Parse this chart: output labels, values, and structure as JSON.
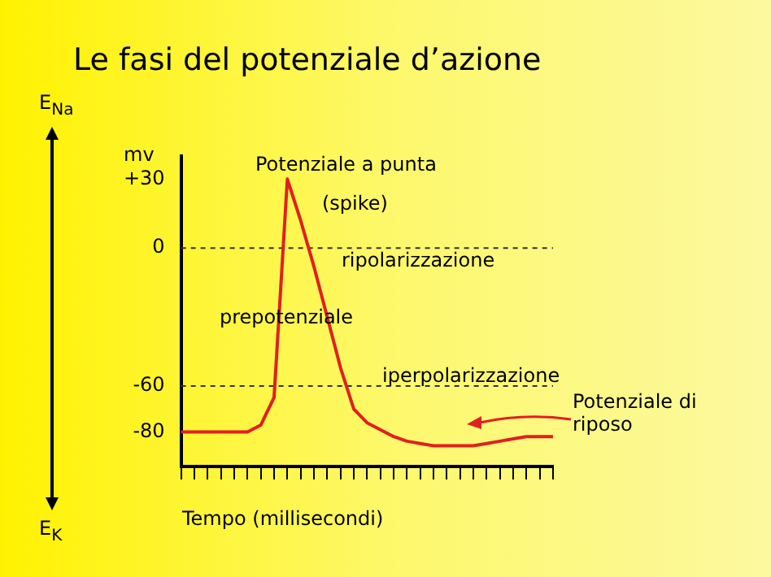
{
  "chart_data": {
    "type": "line",
    "title": "Le fasi del potenziale d’azione",
    "xlabel": "Tempo (millisecondi)",
    "ylabel": "mv",
    "categories": [
      null,
      null,
      null,
      null,
      null,
      null,
      null,
      null,
      null,
      null,
      null,
      null,
      null,
      null,
      null,
      null,
      null,
      null,
      null,
      null,
      null,
      null,
      null,
      null,
      null,
      null,
      null,
      null,
      null
    ],
    "series": [
      {
        "color": "#e02020",
        "values": [
          -80,
          -80,
          -80,
          -80,
          -80,
          -80,
          -77,
          -65,
          30,
          12,
          -8,
          -30,
          -52,
          -70,
          -76,
          -79,
          -82,
          -84,
          -85,
          -86,
          -86,
          -86,
          -86,
          -85,
          -84,
          -83,
          -82,
          -82,
          -82
        ]
      }
    ],
    "ylim": [
      -95,
      40
    ],
    "yticks": [
      {
        "value": 30,
        "label": "+30"
      },
      0,
      -60,
      -80
    ],
    "tick_labels": "y",
    "grid": false,
    "legend": false,
    "marker": "none",
    "line_style": "solid",
    "ref_lines": [
      {
        "axis": "y",
        "value": 0,
        "color": "#333333",
        "line_style": "dashed"
      },
      {
        "axis": "y",
        "value": -60,
        "color": "#333333",
        "line_style": "dashed"
      }
    ],
    "annotations": [
      "Potenziale a punta",
      "(spike)",
      "ripolarizzazione",
      "prepotenziale",
      "iperpolarizzazione",
      "Potenziale di riposo",
      "E$_{Na}$",
      "E$_{K}$"
    ]
  }
}
